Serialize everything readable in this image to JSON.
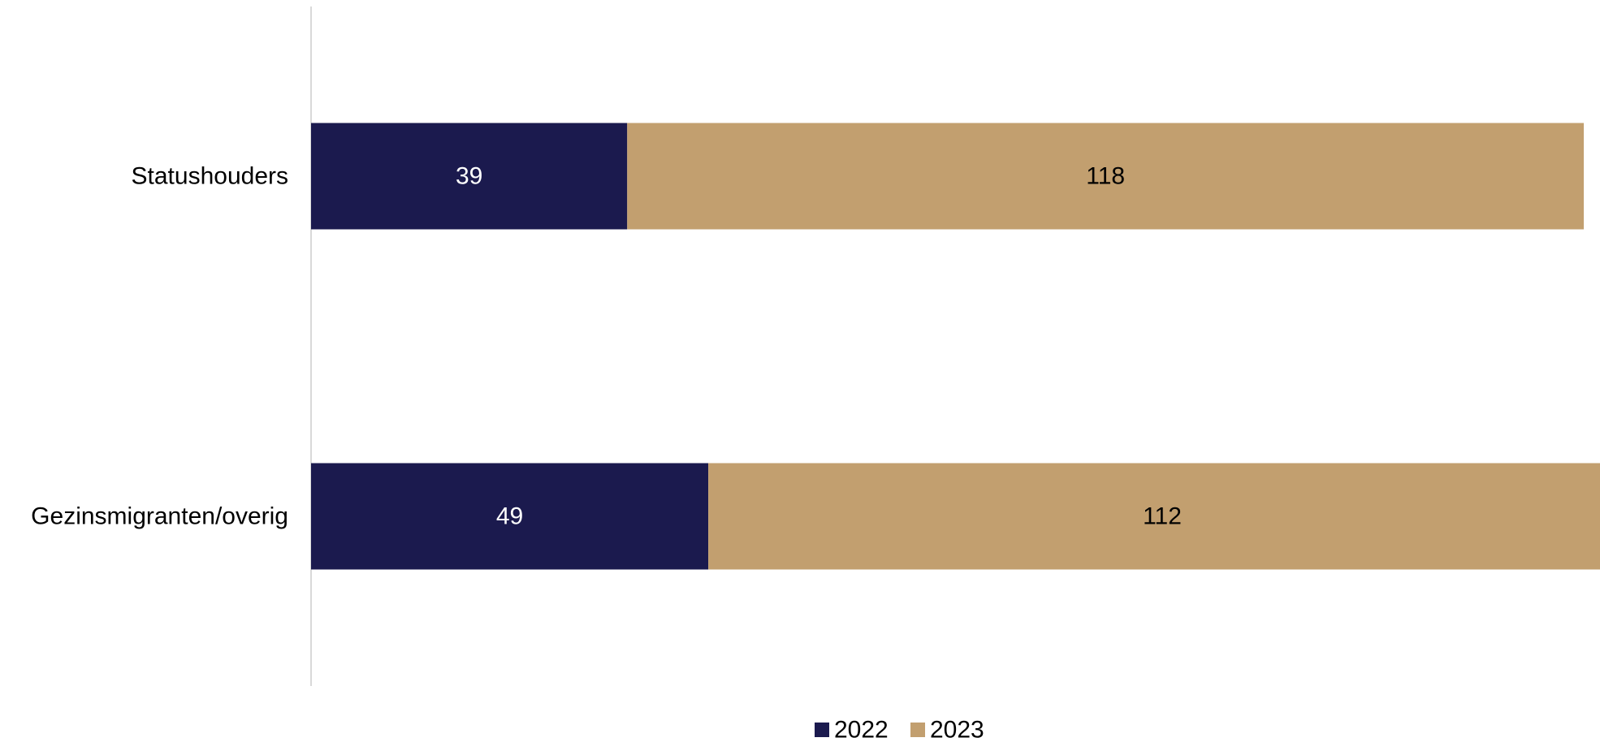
{
  "chart_data": {
    "type": "bar",
    "orientation": "horizontal",
    "stacked": true,
    "title": "",
    "xlabel": "",
    "ylabel": "",
    "categories": [
      "Statushouders",
      "Gezinsmigranten/overig"
    ],
    "series": [
      {
        "name": "2022",
        "values": [
          39,
          49
        ],
        "color": "#1b1a4e",
        "label_color": "#ffffff"
      },
      {
        "name": "2023",
        "values": [
          118,
          112
        ],
        "color": "#c29f6f",
        "label_color": "#000000"
      }
    ],
    "xlim": [
      0,
      159
    ],
    "grid": false,
    "legend": "bottom-center"
  }
}
